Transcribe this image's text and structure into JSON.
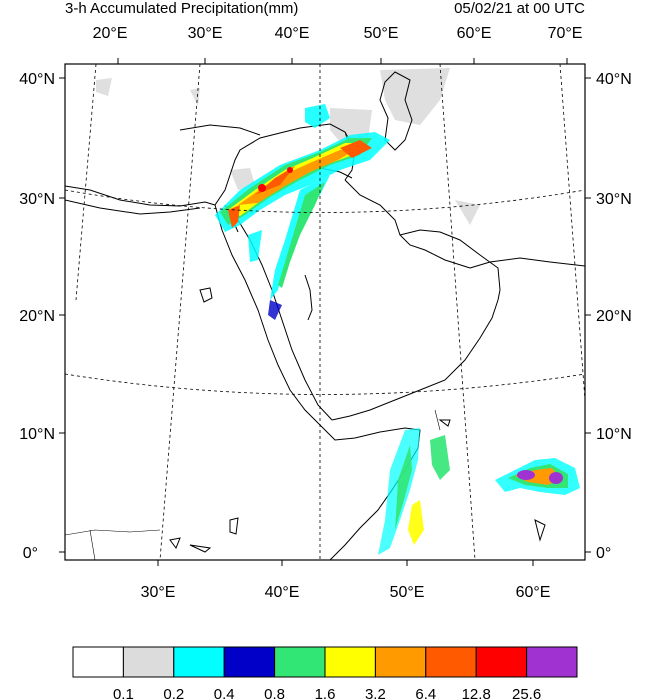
{
  "map": {
    "title": "3-h Accumulated Precipitation(mm)",
    "valid_time": "05/02/21 at 00 UTC",
    "top_lon_labels": [
      "20°E",
      "30°E",
      "40°E",
      "50°E",
      "60°E",
      "70°E"
    ],
    "bottom_lon_labels": [
      "30°E",
      "40°E",
      "50°E",
      "60°E"
    ],
    "lat_labels": [
      "40°N",
      "30°N",
      "20°N",
      "10°N",
      "0°"
    ],
    "colors": {
      "frame": "#000000",
      "coast": "#000000",
      "grid": "#000000",
      "terrain_shade": "#d9d9d9"
    }
  },
  "colorbar": {
    "colors": [
      "#ffffff",
      "#dcdcdc",
      "#00ffff",
      "#0000c8",
      "#32e676",
      "#ffff00",
      "#ff9b00",
      "#ff5a00",
      "#ff0000",
      "#a032d2"
    ],
    "thresholds": [
      "0.1",
      "0.2",
      "0.4",
      "0.8",
      "1.6",
      "3.2",
      "6.4",
      "12.8",
      "25.6"
    ]
  }
}
